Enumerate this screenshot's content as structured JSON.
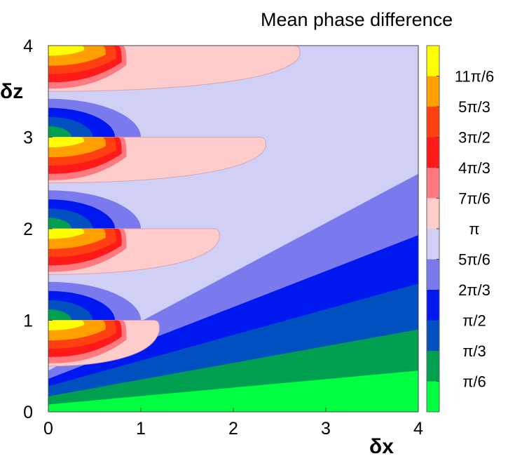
{
  "chart_data": {
    "type": "heatmap",
    "subtype": "filled-contour",
    "title": "Mean phase difference",
    "xlabel": "δx",
    "ylabel": "δz",
    "xlim": [
      0,
      4
    ],
    "ylim": [
      0,
      4
    ],
    "xticks": [
      "0",
      "1",
      "2",
      "3",
      "4"
    ],
    "yticks": [
      "0",
      "1",
      "2",
      "3",
      "4"
    ],
    "colorbar": {
      "levels": [
        {
          "label": "",
          "color": "#00ff40"
        },
        {
          "label": "π/6",
          "color": "#00a050"
        },
        {
          "label": "π/3",
          "color": "#0050c0"
        },
        {
          "label": "π/2",
          "color": "#0018f0"
        },
        {
          "label": "2π/3",
          "color": "#7a7aee"
        },
        {
          "label": "5π/6",
          "color": "#d0d0f6"
        },
        {
          "label": "π",
          "color": "#ffcccc"
        },
        {
          "label": "7π/6",
          "color": "#ff7a80"
        },
        {
          "label": "4π/3",
          "color": "#ff1a1a"
        },
        {
          "label": "3π/2",
          "color": "#ff4010"
        },
        {
          "label": "5π/3",
          "color": "#ffa000"
        },
        {
          "label": "11π/6",
          "color": "#ffff00"
        }
      ]
    },
    "wedges": [
      {
        "level": 0,
        "upper": [
          [
            0,
            0.08
          ],
          [
            4,
            0.45
          ]
        ]
      },
      {
        "level": 1,
        "upper": [
          [
            0,
            0.17
          ],
          [
            4,
            0.9
          ]
        ]
      },
      {
        "level": 2,
        "upper": [
          [
            0,
            0.28
          ],
          [
            4,
            1.4
          ]
        ]
      },
      {
        "level": 3,
        "upper": [
          [
            0,
            0.36
          ],
          [
            4,
            1.93
          ]
        ]
      },
      {
        "level": 4,
        "upper": [
          [
            0,
            0.45
          ],
          [
            4,
            2.6
          ]
        ]
      }
    ],
    "lobes": [
      {
        "center_z": 4,
        "pink_extent_x": 2.72,
        "blue_extent_x": 0
      },
      {
        "center_z": 3,
        "pink_extent_x": 2.35,
        "blue_extent_x": 1.0
      },
      {
        "center_z": 2,
        "pink_extent_x": 1.85,
        "blue_extent_x": 1.0
      },
      {
        "center_z": 1,
        "pink_extent_x": 1.2,
        "blue_extent_x": 1.0
      }
    ]
  }
}
